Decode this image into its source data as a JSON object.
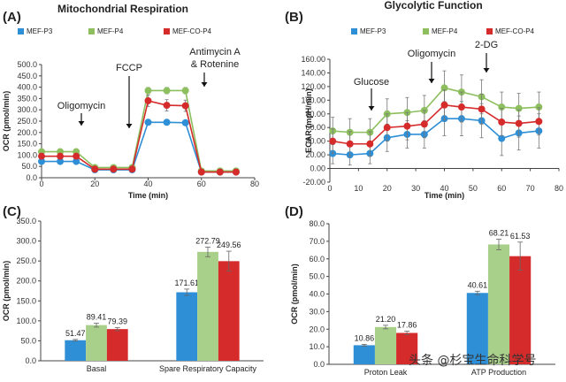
{
  "chart_data": [
    {
      "panel": "(A)",
      "type": "line",
      "title": "Mitochondrial Respiration",
      "xlabel": "Time (min)",
      "ylabel": "OCR (pmol/min)",
      "xlim": [
        0,
        80
      ],
      "ylim": [
        0,
        500
      ],
      "xticks": [
        0,
        20,
        40,
        60,
        80
      ],
      "yticks": [
        0,
        50,
        100,
        150,
        200,
        250,
        300,
        350,
        400,
        450,
        500
      ],
      "ytick_labels": [
        "0.0",
        "50.0",
        "100.0",
        "150.0",
        "200.0",
        "250.0",
        "300.0",
        "350.0",
        "400.0",
        "450.0",
        "500.0"
      ],
      "x": [
        0,
        7,
        13,
        20,
        27,
        34,
        40,
        47,
        54,
        60,
        67,
        73
      ],
      "series": [
        {
          "name": "MEF-P3",
          "color": "#2e8fd6",
          "values": [
            72,
            72,
            72,
            35,
            35,
            35,
            245,
            245,
            243,
            25,
            25,
            25
          ],
          "err": [
            5,
            5,
            5,
            4,
            4,
            4,
            8,
            8,
            8,
            3,
            3,
            3
          ]
        },
        {
          "name": "MEF-P4",
          "color": "#8dbf5f",
          "values": [
            115,
            115,
            115,
            45,
            45,
            45,
            385,
            385,
            385,
            30,
            30,
            30
          ],
          "err": [
            8,
            8,
            8,
            5,
            5,
            5,
            14,
            14,
            14,
            4,
            4,
            4
          ]
        },
        {
          "name": "MEF-CO-P4",
          "color": "#d62b2b",
          "values": [
            95,
            95,
            95,
            38,
            38,
            38,
            340,
            320,
            318,
            25,
            25,
            25
          ],
          "err": [
            7,
            7,
            7,
            5,
            5,
            5,
            25,
            25,
            25,
            4,
            4,
            4
          ]
        }
      ],
      "legend": "top",
      "annotations": [
        "Oligomycin",
        "FCCP",
        "Antimycin A",
        "& Rotenine"
      ]
    },
    {
      "panel": "(B)",
      "type": "line",
      "title": "Glycolytic Function",
      "xlabel": "Time (min)",
      "ylabel": "ECAR (mpH/min)",
      "xlim": [
        0,
        80
      ],
      "ylim": [
        -20,
        160
      ],
      "xticks": [
        0,
        10,
        20,
        30,
        40,
        50,
        60,
        70,
        80
      ],
      "yticks": [
        -20,
        0,
        20,
        40,
        60,
        80,
        100,
        120,
        140,
        160
      ],
      "ytick_labels": [
        "-20.00",
        "0.00",
        "20.00",
        "40.00",
        "60.00",
        "80.00",
        "100.00",
        "120.00",
        "140.00",
        "160.00"
      ],
      "x": [
        1,
        7,
        14,
        20,
        27,
        33,
        40,
        46,
        53,
        60,
        66,
        73
      ],
      "series": [
        {
          "name": "MEF-P3",
          "color": "#2e8fd6",
          "values": [
            22,
            20,
            22,
            45,
            50,
            50,
            73,
            73,
            70,
            44,
            52,
            55
          ],
          "err": [
            15,
            15,
            15,
            20,
            20,
            20,
            25,
            25,
            25,
            25,
            25,
            25
          ]
        },
        {
          "name": "MEF-P4",
          "color": "#8dbf5f",
          "values": [
            55,
            53,
            53,
            80,
            82,
            85,
            118,
            112,
            105,
            90,
            88,
            90
          ],
          "err": [
            20,
            20,
            20,
            22,
            22,
            22,
            25,
            25,
            25,
            22,
            22,
            22
          ]
        },
        {
          "name": "MEF-CO-P4",
          "color": "#d62b2b",
          "values": [
            40,
            36,
            36,
            60,
            62,
            65,
            93,
            90,
            87,
            68,
            66,
            69
          ],
          "err": [
            18,
            18,
            18,
            20,
            20,
            20,
            22,
            22,
            22,
            20,
            20,
            20
          ]
        }
      ],
      "legend": "top",
      "annotations": [
        "Glucose",
        "Oligomycin",
        "2-DG"
      ]
    },
    {
      "panel": "(C)",
      "type": "bar",
      "ylabel": "OCR (pmol/min)",
      "ylim": [
        0,
        350
      ],
      "yticks": [
        0,
        50,
        100,
        150,
        200,
        250,
        300,
        350
      ],
      "ytick_labels": [
        "0.0",
        "50.0",
        "100.0",
        "150.0",
        "200.0",
        "250.0",
        "300.0",
        "350.0"
      ],
      "categories": [
        "Basal",
        "Spare Respiratory Capacity"
      ],
      "series": [
        {
          "name": "MEF-P3",
          "color": "#2e8fd6",
          "values": [
            51.47,
            171.61
          ],
          "labels": [
            "51.47",
            "171.61"
          ],
          "err": [
            2,
            8
          ]
        },
        {
          "name": "MEF-P4",
          "color": "#a8d08a",
          "values": [
            89.41,
            272.79
          ],
          "labels": [
            "89.41",
            "272.79"
          ],
          "err": [
            5,
            12
          ]
        },
        {
          "name": "MEF-CO-P4",
          "color": "#d62b2b",
          "values": [
            79.39,
            249.56
          ],
          "labels": [
            "79.39",
            "249.56"
          ],
          "err": [
            4,
            25
          ]
        }
      ]
    },
    {
      "panel": "(D)",
      "type": "bar",
      "ylabel": "OCR (pmol/min)",
      "ylim": [
        0,
        80
      ],
      "yticks": [
        0,
        10,
        20,
        30,
        40,
        50,
        60,
        70,
        80
      ],
      "ytick_labels": [
        "0.0",
        "10.0",
        "20.0",
        "30.0",
        "40.0",
        "50.0",
        "60.0",
        "70.0",
        "80.0"
      ],
      "categories": [
        "Proton Leak",
        "ATP Production"
      ],
      "series": [
        {
          "name": "MEF-P3",
          "color": "#2e8fd6",
          "values": [
            10.86,
            40.61
          ],
          "labels": [
            "10.86",
            "40.61"
          ],
          "err": [
            0.5,
            1
          ]
        },
        {
          "name": "MEF-P4",
          "color": "#a8d08a",
          "values": [
            21.2,
            68.21
          ],
          "labels": [
            "21.20",
            "68.21"
          ],
          "err": [
            1,
            3
          ]
        },
        {
          "name": "MEF-CO-P4",
          "color": "#d62b2b",
          "values": [
            17.86,
            61.53
          ],
          "labels": [
            "17.86",
            "61.53"
          ],
          "err": [
            1,
            8
          ]
        }
      ]
    }
  ],
  "watermark": "头条 @杉宝生命科学号"
}
